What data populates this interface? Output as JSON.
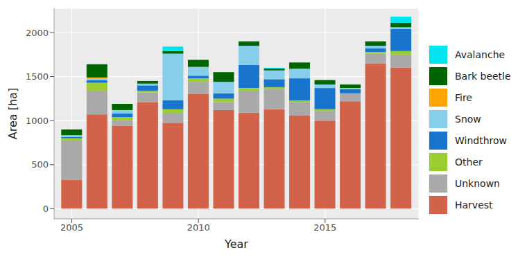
{
  "chart_data": {
    "type": "bar",
    "stacked": true,
    "grid": true,
    "legend": "right",
    "x_label": "Year",
    "y_label": "Area [ha]",
    "x": [
      2005,
      2006,
      2007,
      2008,
      2009,
      2010,
      2011,
      2012,
      2013,
      2014,
      2015,
      2016,
      2017,
      2018
    ],
    "xlim": [
      2004.3,
      2018.7
    ],
    "xticks": [
      2005,
      2010,
      2015
    ],
    "ylim": [
      -115,
      2275
    ],
    "yticks": [
      0,
      500,
      1000,
      1500,
      2000
    ],
    "series": [
      {
        "name": "Avalanche",
        "color": "#00E5EE",
        "values": [
          0,
          0,
          0,
          0,
          50,
          0,
          0,
          0,
          10,
          0,
          0,
          0,
          0,
          70
        ]
      },
      {
        "name": "Bark beetle",
        "color": "#006400",
        "values": [
          65,
          150,
          70,
          30,
          30,
          80,
          110,
          50,
          20,
          70,
          50,
          40,
          50,
          50
        ]
      },
      {
        "name": "Fire",
        "color": "#FFA500",
        "values": [
          5,
          10,
          0,
          0,
          0,
          0,
          0,
          0,
          0,
          0,
          0,
          0,
          0,
          0
        ]
      },
      {
        "name": "Snow",
        "color": "#87CEEB",
        "values": [
          15,
          20,
          40,
          20,
          530,
          100,
          130,
          220,
          100,
          110,
          40,
          10,
          30,
          20
        ]
      },
      {
        "name": "Windthrow",
        "color": "#1874CD",
        "values": [
          15,
          30,
          40,
          60,
          100,
          30,
          60,
          260,
          90,
          250,
          240,
          50,
          40,
          250
        ]
      },
      {
        "name": "Other",
        "color": "#9ACD32",
        "values": [
          25,
          90,
          40,
          20,
          50,
          40,
          40,
          30,
          20,
          20,
          20,
          10,
          20,
          40
        ]
      },
      {
        "name": "Unknown",
        "color": "#A9A9A9",
        "values": [
          445,
          270,
          60,
          110,
          110,
          140,
          90,
          250,
          230,
          150,
          110,
          80,
          110,
          150
        ]
      },
      {
        "name": "Harvest",
        "color": "#D2624A",
        "values": [
          330,
          1070,
          940,
          1210,
          970,
          1300,
          1120,
          1090,
          1130,
          1060,
          1000,
          1220,
          1650,
          1600
        ]
      }
    ]
  }
}
